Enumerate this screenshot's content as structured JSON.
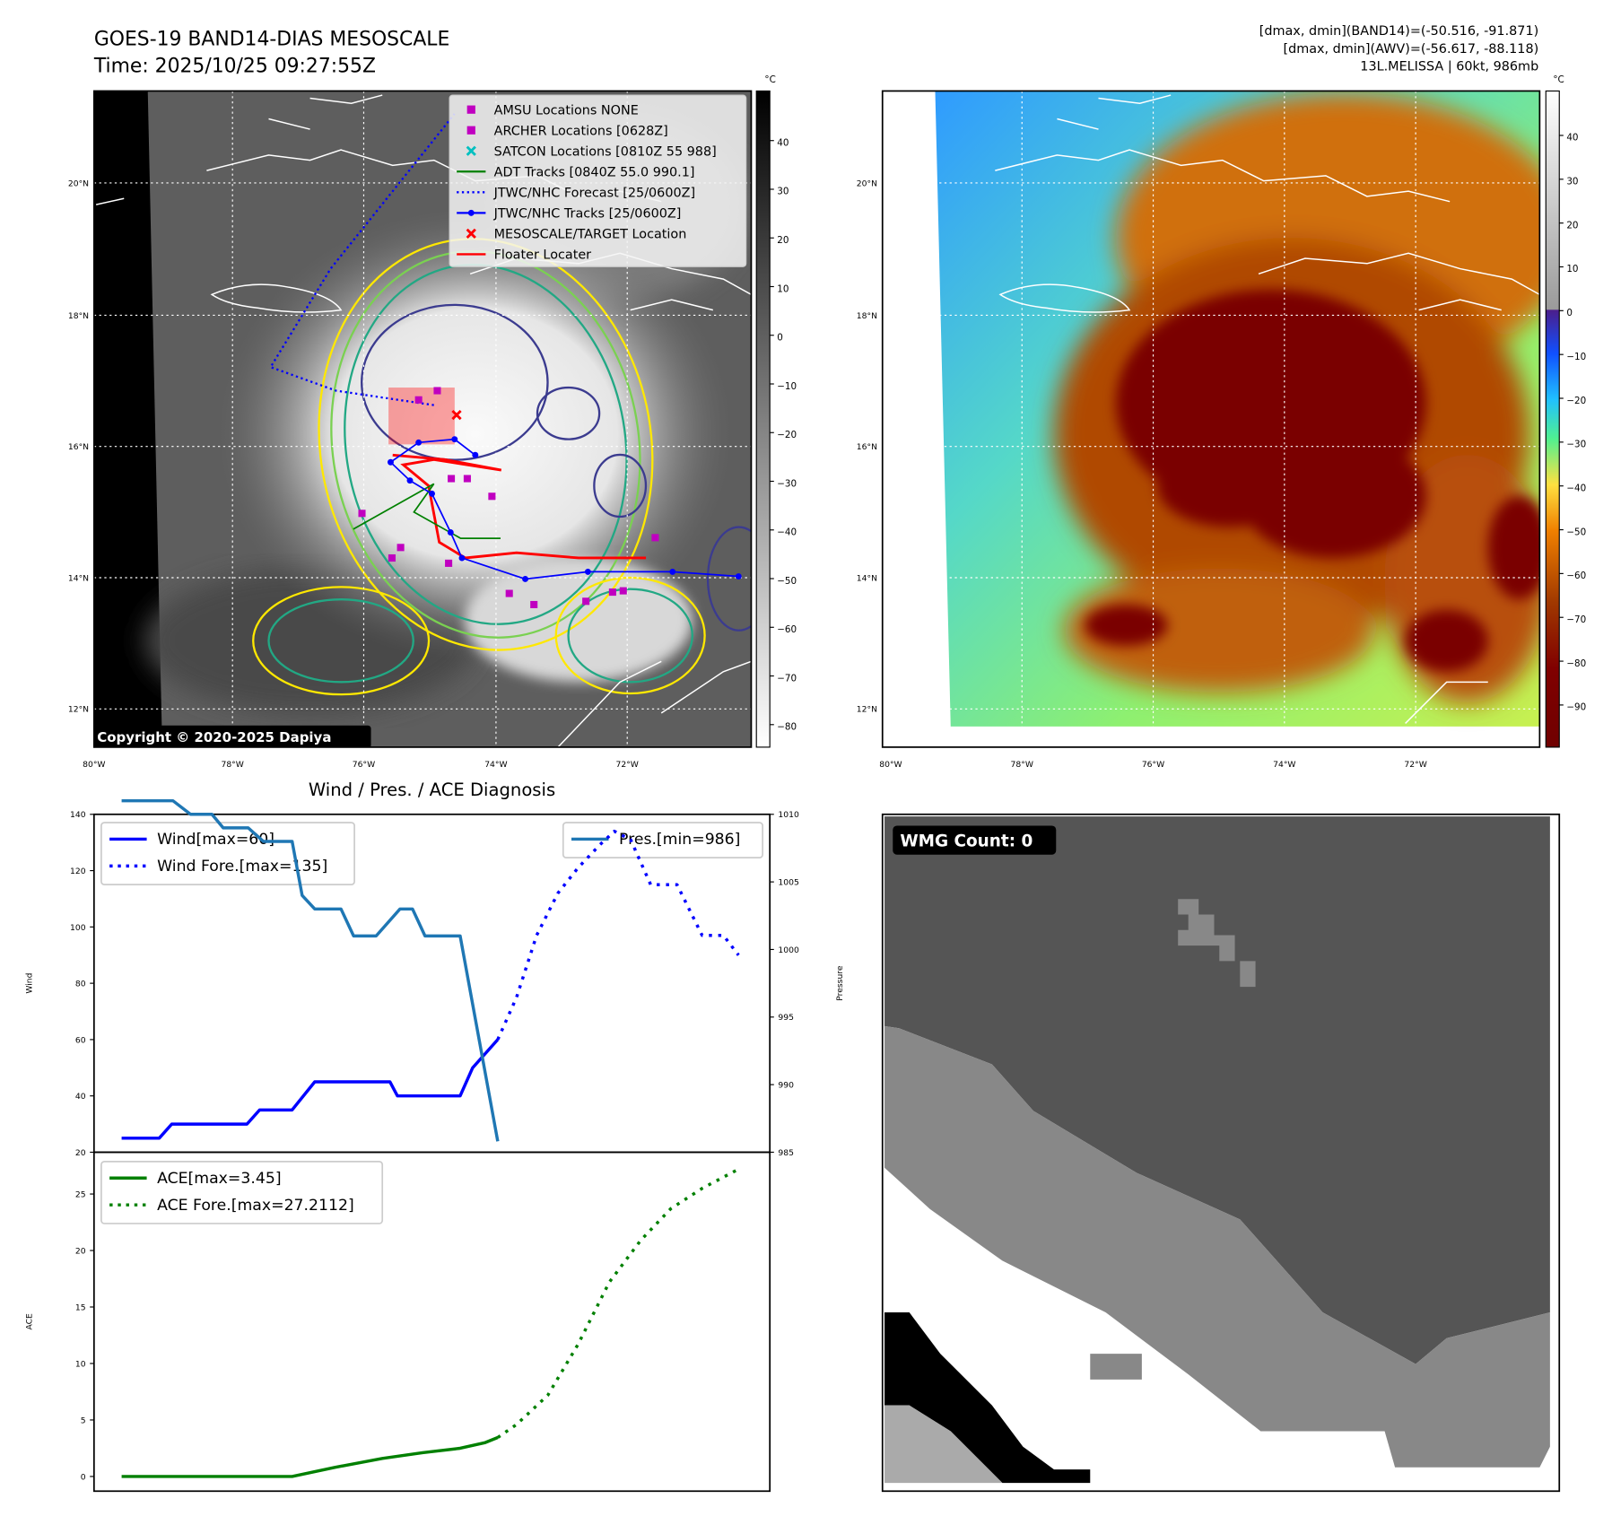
{
  "header": {
    "title": "GOES-19 BAND14-DIAS MESOSCALE",
    "time": "Time: 2025/10/25 09:27:55Z",
    "stats": [
      "[dmax, dmin](BAND14)=(-50.516, -91.871)",
      "[dmax, dmin](AWV)=(-56.617, -88.118)",
      "13L.MELISSA | 60kt, 986mb"
    ]
  },
  "maps": {
    "unit": "°C",
    "lat_ticks": [
      "20°N",
      "18°N",
      "16°N",
      "14°N",
      "12°N"
    ],
    "lon_ticks": [
      "80°W",
      "78°W",
      "76°W",
      "74°W",
      "72°W"
    ],
    "left_cbar_ticks": [
      "40",
      "30",
      "20",
      "10",
      "0",
      "−10",
      "−20",
      "−30",
      "−40",
      "−50",
      "−60",
      "−70",
      "−80"
    ],
    "right_cbar_ticks": [
      "40",
      "30",
      "20",
      "10",
      "0",
      "−10",
      "−20",
      "−30",
      "−40",
      "−50",
      "−60",
      "−70",
      "−80",
      "−90"
    ],
    "copyright": "Copyright © 2020-2025 Dapiya",
    "legend": [
      {
        "label": "AMSU Locations NONE",
        "marker": "square",
        "color": "#c000c0"
      },
      {
        "label": "ARCHER Locations [0628Z]",
        "marker": "square",
        "color": "#c000c0"
      },
      {
        "label": "SATCON Locations [0810Z 55 988]",
        "marker": "x",
        "color": "#00c0c0"
      },
      {
        "label": "ADT Tracks [0840Z 55.0 990.1]",
        "marker": "line",
        "color": "#008000"
      },
      {
        "label": "JTWC/NHC Forecast [25/0600Z]",
        "marker": "dotted",
        "color": "#0000ff"
      },
      {
        "label": "JTWC/NHC Tracks [25/0600Z]",
        "marker": "line-dot",
        "color": "#0000ff"
      },
      {
        "label": "MESOSCALE/TARGET Location",
        "marker": "x",
        "color": "#ff0000"
      },
      {
        "label": "Floater Locater",
        "marker": "line",
        "color": "#ff0000"
      }
    ],
    "jtwc_track": [
      [
        -70.33,
        14.02
      ],
      [
        -71.32,
        14.09
      ],
      [
        -72.59,
        14.09
      ],
      [
        -73.53,
        13.98
      ],
      [
        -74.48,
        14.3
      ],
      [
        -74.65,
        14.69
      ],
      [
        -74.93,
        15.28
      ],
      [
        -75.26,
        15.48
      ],
      [
        -75.55,
        15.76
      ],
      [
        -75.13,
        16.06
      ],
      [
        -74.59,
        16.11
      ],
      [
        -74.28,
        15.87
      ]
    ],
    "jtwc_forecast": [
      [
        -74.9,
        16.63
      ],
      [
        -76.37,
        16.85
      ],
      [
        -77.35,
        17.21
      ],
      [
        -76.45,
        18.71
      ],
      [
        -75.52,
        19.89
      ],
      [
        -74.59,
        21.07
      ]
    ],
    "archer_points": [
      [
        -75.13,
        16.71
      ],
      [
        -74.85,
        16.85
      ],
      [
        -74.64,
        15.51
      ],
      [
        -74.4,
        15.51
      ],
      [
        -74.03,
        15.24
      ],
      [
        -75.98,
        14.98
      ],
      [
        -75.4,
        14.46
      ],
      [
        -75.53,
        14.3
      ],
      [
        -74.68,
        14.22
      ],
      [
        -73.77,
        13.76
      ],
      [
        -73.4,
        13.59
      ],
      [
        -72.62,
        13.64
      ],
      [
        -72.22,
        13.78
      ],
      [
        -72.06,
        13.8
      ],
      [
        -71.58,
        14.61
      ]
    ],
    "adt_track": [
      [
        -76.11,
        14.74
      ],
      [
        -74.9,
        15.43
      ],
      [
        -75.2,
        15.0
      ],
      [
        -74.5,
        14.6
      ],
      [
        -73.9,
        14.6
      ]
    ],
    "floater_track": [
      [
        -75.52,
        15.87
      ],
      [
        -74.74,
        15.8
      ],
      [
        -73.89,
        15.64
      ],
      [
        -74.9,
        15.8
      ],
      [
        -75.36,
        15.72
      ],
      [
        -74.98,
        15.4
      ],
      [
        -74.82,
        14.54
      ],
      [
        -74.43,
        14.3
      ],
      [
        -73.66,
        14.38
      ],
      [
        -72.73,
        14.3
      ],
      [
        -71.72,
        14.3
      ]
    ],
    "target": [
      -74.56,
      16.48
    ],
    "colors": {
      "yellow": "#ffe800",
      "green": "#7ad151",
      "teal": "#22a884",
      "navy": "#3b3b8f"
    }
  },
  "chart_data": [
    {
      "type": "line",
      "title": "Wind / Pres. / ACE Diagnosis",
      "ylabel": "Wind",
      "y2label": "Pressure",
      "ylim": [
        20,
        140
      ],
      "y2lim": [
        985,
        1010
      ],
      "yticks": [
        "20",
        "40",
        "60",
        "80",
        "100",
        "120",
        "140"
      ],
      "y2ticks": [
        "985",
        "990",
        "995",
        "1000",
        "1005",
        "1010"
      ],
      "xlim": [
        -2.2,
        51.7
      ],
      "legend": [
        "Wind[max=60]",
        "Wind Fore.[max=135]",
        "Pres.[min=986]"
      ],
      "series": [
        {
          "name": "Wind[max=60]",
          "axis": "left",
          "style": "solid",
          "color": "#0000ff",
          "x": [
            0,
            3,
            4,
            10,
            11,
            13.6,
            15.4,
            21.4,
            22,
            27,
            28,
            30
          ],
          "y": [
            25,
            25,
            30,
            30,
            35,
            35,
            45,
            45,
            40,
            40,
            50,
            60
          ]
        },
        {
          "name": "Wind Fore.[max=135]",
          "axis": "left",
          "style": "dotted",
          "color": "#0000ff",
          "x": [
            30,
            31.5,
            33.1,
            34.8,
            36.4,
            38.1,
            39.3,
            40.6,
            42.2,
            44.3,
            46.3,
            48,
            49.2
          ],
          "y": [
            60,
            75,
            97,
            112,
            121,
            129,
            134,
            131,
            115,
            115,
            97,
            97,
            90
          ]
        },
        {
          "name": "Pres.[min=986]",
          "axis": "right",
          "style": "solid",
          "color": "#1f77b4",
          "x": [
            0,
            4.1,
            5.5,
            7.2,
            8.1,
            10.1,
            11.3,
            13.6,
            14.4,
            15.4,
            17.5,
            18.5,
            20.3,
            22.2,
            23.2,
            24.2,
            27,
            30
          ],
          "y": [
            1011,
            1011,
            1010,
            1010,
            1009,
            1009,
            1008,
            1008,
            1004,
            1003,
            1003,
            1001,
            1001,
            1003,
            1003,
            1001,
            1001,
            985.8
          ]
        }
      ]
    },
    {
      "type": "line",
      "ylabel": "ACE",
      "ylim": [
        -1.3,
        28.7
      ],
      "yticks": [
        "0",
        "5",
        "10",
        "15",
        "20",
        "25"
      ],
      "xlim": [
        -2.2,
        51.7
      ],
      "legend": [
        "ACE[max=3.45]",
        "ACE Fore.[max=27.2112]"
      ],
      "series": [
        {
          "name": "ACE[max=3.45]",
          "style": "solid",
          "color": "#008000",
          "x": [
            0,
            13.6,
            17,
            20.8,
            24,
            27,
            29,
            30
          ],
          "y": [
            0,
            0,
            0.8,
            1.6,
            2.1,
            2.5,
            3.0,
            3.45
          ]
        },
        {
          "name": "ACE Fore.[max=27.2112]",
          "style": "dotted",
          "color": "#008000",
          "x": [
            30,
            31.5,
            34,
            36.4,
            38.9,
            41.4,
            43.8,
            46.3,
            49.2
          ],
          "y": [
            3.45,
            4.6,
            7.2,
            11.7,
            17.2,
            20.9,
            23.7,
            25.5,
            27.2
          ]
        }
      ]
    }
  ],
  "wmg": {
    "label": "WMG Count: 0"
  }
}
